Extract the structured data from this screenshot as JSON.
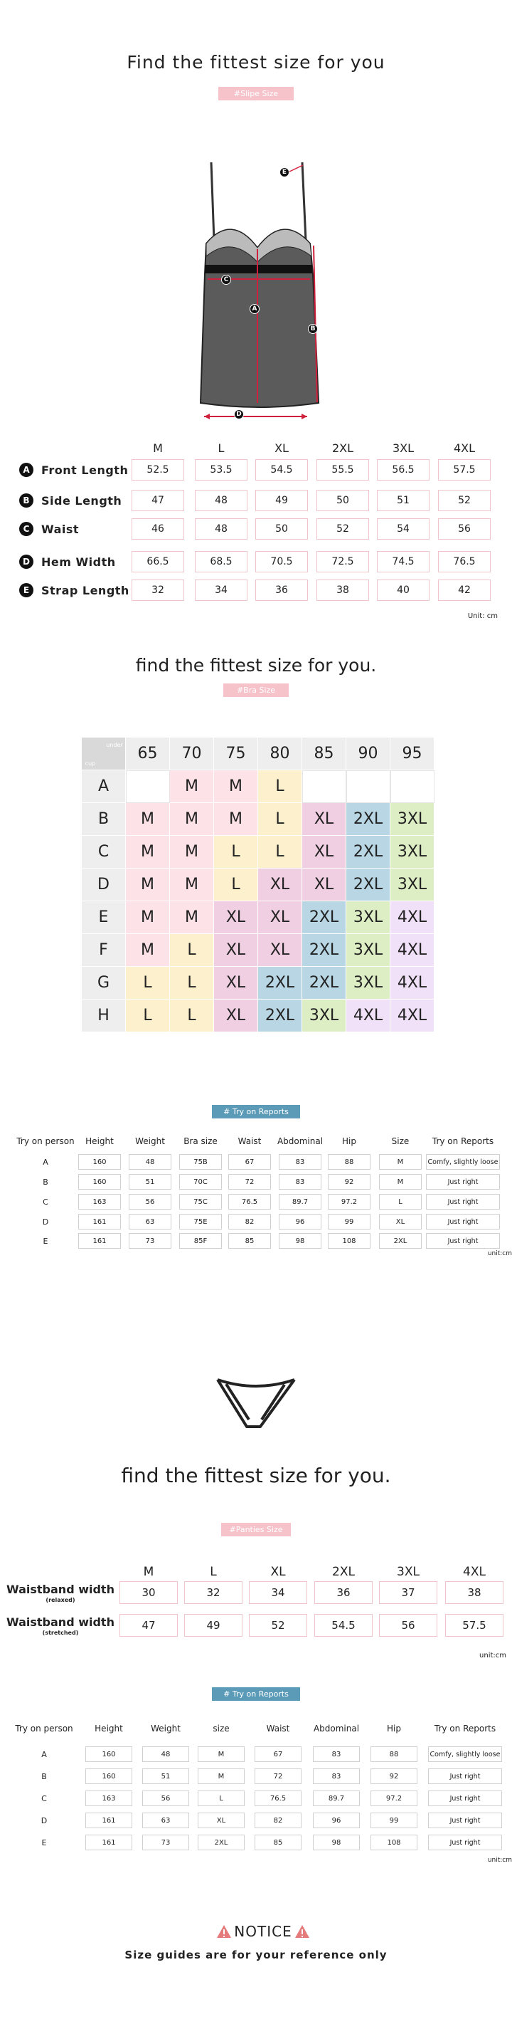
{
  "slip": {
    "title": "Find the fittest size for you",
    "tag": "#Slipe Size",
    "sizes": [
      "M",
      "L",
      "XL",
      "2XL",
      "3XL",
      "4XL"
    ],
    "rows": [
      {
        "marker": "A",
        "name": "Front Length",
        "values": [
          52.5,
          53.5,
          54.5,
          55.5,
          56.5,
          57.5
        ]
      },
      {
        "marker": "B",
        "name": "Side Length",
        "values": [
          47,
          48,
          49,
          50,
          51,
          52
        ]
      },
      {
        "marker": "C",
        "name": "Waist",
        "values": [
          46,
          48,
          50,
          52,
          54,
          56
        ]
      },
      {
        "marker": "D",
        "name": "Hem Width",
        "values": [
          66.5,
          68.5,
          70.5,
          72.5,
          74.5,
          76.5
        ]
      },
      {
        "marker": "E",
        "name": "Strap Length",
        "values": [
          32,
          34,
          36,
          38,
          40,
          42
        ]
      }
    ],
    "unit": "Unit: cm"
  },
  "bra": {
    "title": "find the fittest size for you.",
    "tag": "#Bra Size",
    "corner": {
      "top": "under",
      "bottom": "cup"
    },
    "bands": [
      65,
      70,
      75,
      80,
      85,
      90,
      95
    ],
    "cups": [
      "A",
      "B",
      "C",
      "D",
      "E",
      "F",
      "G",
      "H"
    ],
    "grid": [
      [
        null,
        "M",
        "M",
        "L",
        null,
        null,
        null
      ],
      [
        "M",
        "M",
        "M",
        "L",
        "XL",
        "2XL",
        "3XL"
      ],
      [
        "M",
        "M",
        "L",
        "L",
        "XL",
        "2XL",
        "3XL"
      ],
      [
        "M",
        "M",
        "L",
        "XL",
        "XL",
        "2XL",
        "3XL"
      ],
      [
        "M",
        "M",
        "XL",
        "XL",
        "2XL",
        "3XL",
        "4XL"
      ],
      [
        "M",
        "L",
        "XL",
        "XL",
        "2XL",
        "3XL",
        "4XL"
      ],
      [
        "L",
        "L",
        "XL",
        "2XL",
        "2XL",
        "3XL",
        "4XL"
      ],
      [
        "L",
        "L",
        "XL",
        "2XL",
        "3XL",
        "4XL",
        "4XL"
      ]
    ],
    "colors": {
      "M": "#fde3e8",
      "L": "#fdf0cc",
      "XL": "#efcfe1",
      "2XL": "#b8d6e4",
      "3XL": "#ddeec4",
      "4XL": "#f1e1f8"
    }
  },
  "bra_report": {
    "tag": "# Try on Reports",
    "headers": [
      "Try on person",
      "Height",
      "Weight",
      "Bra size",
      "Waist",
      "Abdominal",
      "Hip",
      "Size",
      "Try on Reports"
    ],
    "rows": [
      [
        "A",
        160,
        48,
        "75B",
        67,
        83,
        88,
        "M",
        "Comfy, slightly loose"
      ],
      [
        "B",
        160,
        51,
        "70C",
        72,
        83,
        92,
        "M",
        "Just right"
      ],
      [
        "C",
        163,
        56,
        "75C",
        76.5,
        89.7,
        97.2,
        "L",
        "Just right"
      ],
      [
        "D",
        161,
        63,
        "75E",
        82,
        96,
        99,
        "XL",
        "Just right"
      ],
      [
        "E",
        161,
        73,
        "85F",
        85,
        98,
        108,
        "2XL",
        "Just right"
      ]
    ],
    "unit": "unit:cm"
  },
  "panties": {
    "title": "find the fittest size for you.",
    "tag": "#Panties Size",
    "sizes": [
      "M",
      "L",
      "XL",
      "2XL",
      "3XL",
      "4XL"
    ],
    "rows": [
      {
        "name": "Waistband width",
        "note": "(relaxed)",
        "values": [
          30,
          32,
          34,
          36,
          37,
          38
        ]
      },
      {
        "name": "Waistband width",
        "note": "(stretched)",
        "values": [
          47,
          49,
          52,
          54.5,
          56,
          57.5
        ]
      }
    ],
    "unit": "unit:cm"
  },
  "panties_report": {
    "tag": "# Try on Reports",
    "headers": [
      "Try on person",
      "Height",
      "Weight",
      "size",
      "Waist",
      "Abdominal",
      "Hip",
      "Try on Reports"
    ],
    "rows": [
      [
        "A",
        160,
        48,
        "M",
        67,
        83,
        88,
        "Comfy, slightly loose"
      ],
      [
        "B",
        160,
        51,
        "M",
        72,
        83,
        92,
        "Just right"
      ],
      [
        "C",
        163,
        56,
        "L",
        76.5,
        89.7,
        97.2,
        "Just right"
      ],
      [
        "D",
        161,
        63,
        "XL",
        82,
        96,
        99,
        "Just right"
      ],
      [
        "E",
        161,
        73,
        "2XL",
        85,
        98,
        108,
        "Just right"
      ]
    ],
    "unit": "unit:cm"
  },
  "notice": {
    "title": "NOTICE",
    "text": "Size guides are for your reference only"
  }
}
